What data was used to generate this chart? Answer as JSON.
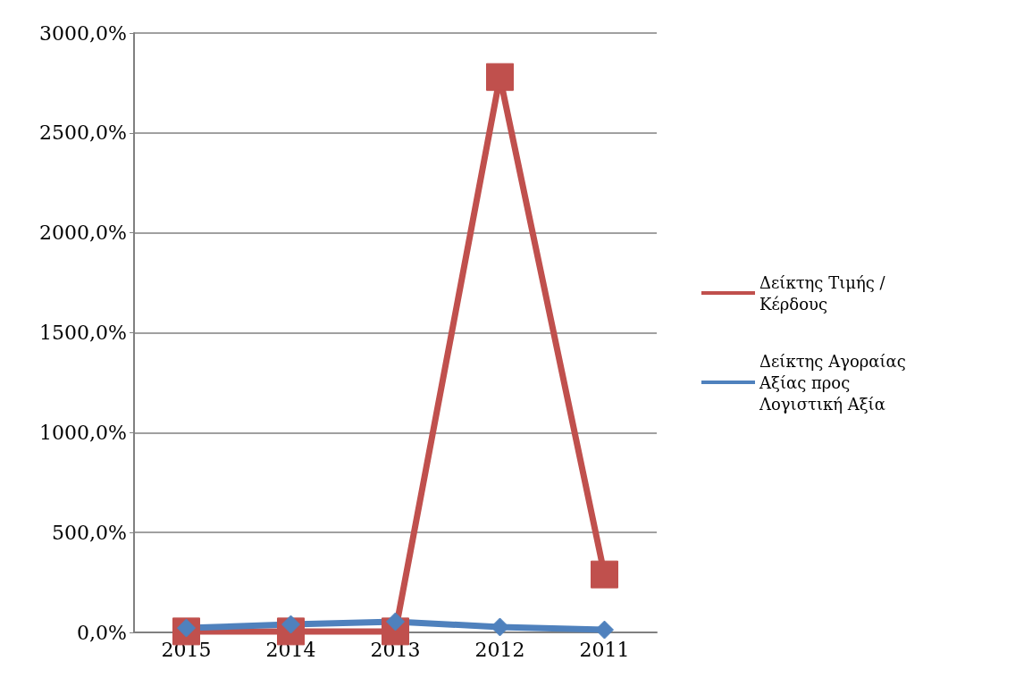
{
  "chart_data": {
    "type": "line",
    "categories": [
      "2015",
      "2014",
      "2013",
      "2012",
      "2011"
    ],
    "series": [
      {
        "name": "Δείκτης Τιμής / Κέρδους",
        "color": "#c0504d",
        "marker": "square",
        "values": [
          5,
          5,
          5,
          2780,
          290
        ]
      },
      {
        "name": "Δείκτης Αγοραίας Αξίας προς Λογιστική Αξία",
        "color": "#4f81bd",
        "marker": "diamond",
        "values": [
          22,
          40,
          54,
          27,
          13
        ]
      }
    ],
    "ylim": [
      0,
      3000
    ],
    "yticks": [
      {
        "value": 0,
        "label": "0,0%"
      },
      {
        "value": 500,
        "label": "500,0%"
      },
      {
        "value": 1000,
        "label": "1000,0%"
      },
      {
        "value": 1500,
        "label": "1500,0%"
      },
      {
        "value": 2000,
        "label": "2000,0%"
      },
      {
        "value": 2500,
        "label": "2500,0%"
      },
      {
        "value": 3000,
        "label": "3000,0%"
      }
    ],
    "grid": "y",
    "legend": "right"
  }
}
